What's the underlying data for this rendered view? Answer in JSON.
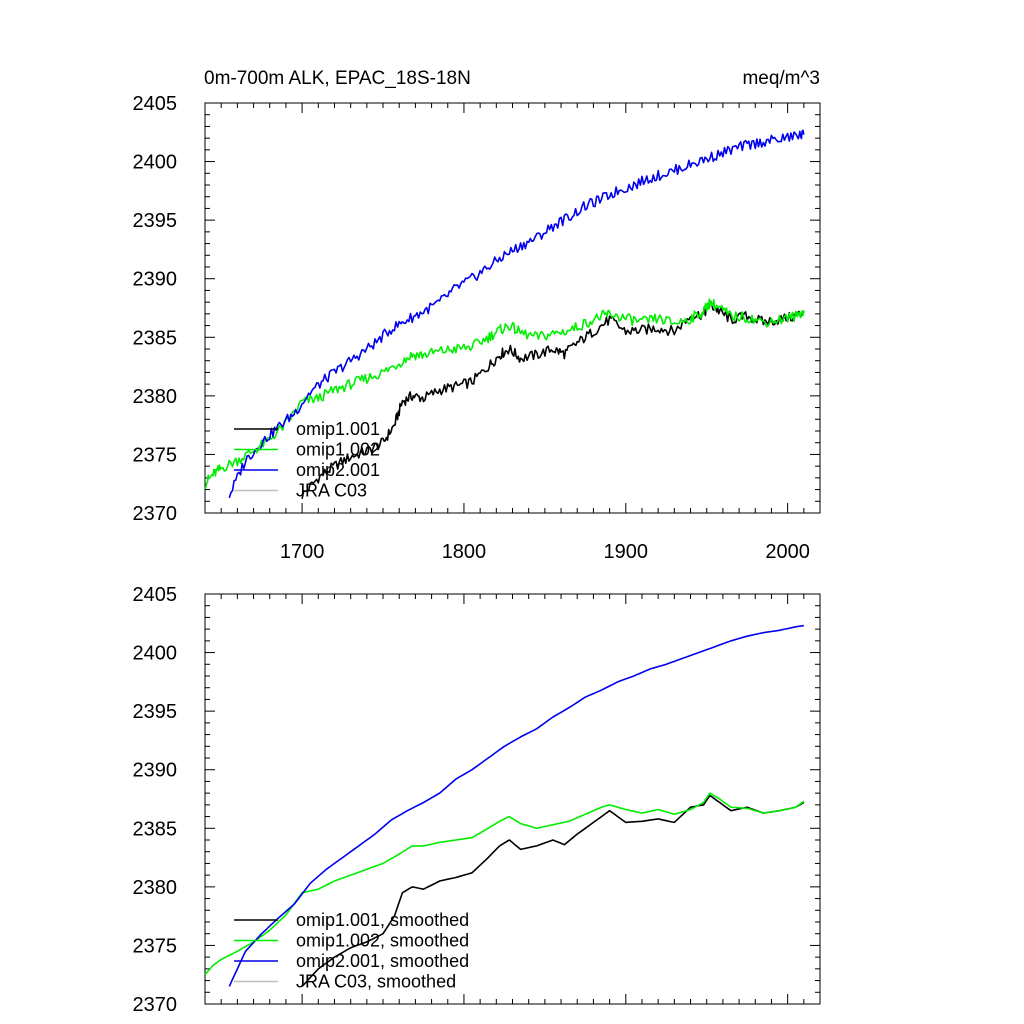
{
  "page": {
    "title_left": "0m-700m ALK, EPAC_18S-18N",
    "title_right": "meq/m^3"
  },
  "chart_data": [
    {
      "type": "line",
      "title": "0m-700m ALK, EPAC_18S-18N",
      "units": "meq/m^3",
      "xlim": [
        1640,
        2020
      ],
      "ylim": [
        2370,
        2405
      ],
      "xticks": [
        1700,
        1800,
        1900,
        2000
      ],
      "xtick_labels": [
        "1700",
        "1800",
        "1900",
        "2000"
      ],
      "yticks": [
        2370,
        2375,
        2380,
        2385,
        2390,
        2395,
        2400,
        2405
      ],
      "ytick_labels": [
        "2370",
        "2375",
        "2380",
        "2385",
        "2390",
        "2395",
        "2400",
        "2405"
      ],
      "legend": [
        "omip1.001",
        "omip1.002",
        "omip2.001",
        "JRA C03"
      ],
      "legend_position": "bottom-left",
      "series": [
        {
          "name": "omip1.001",
          "color": "#000000",
          "x": [
            1700,
            1710,
            1720,
            1730,
            1740,
            1750,
            1757,
            1762,
            1768,
            1775,
            1785,
            1795,
            1805,
            1815,
            1822,
            1828,
            1835,
            1845,
            1855,
            1862,
            1870,
            1880,
            1890,
            1900,
            1910,
            1920,
            1930,
            1940,
            1948,
            1952,
            1958,
            1965,
            1975,
            1985,
            1995,
            2005,
            2010
          ],
          "values": [
            2371.5,
            2373.0,
            2374.0,
            2374.8,
            2375.3,
            2376.0,
            2377.5,
            2379.5,
            2380.0,
            2379.8,
            2380.5,
            2380.8,
            2381.2,
            2382.5,
            2383.5,
            2384.0,
            2383.2,
            2383.5,
            2384.0,
            2383.6,
            2384.5,
            2385.5,
            2386.5,
            2385.5,
            2385.6,
            2385.8,
            2385.5,
            2386.8,
            2387.0,
            2387.8,
            2387.2,
            2386.5,
            2386.8,
            2386.3,
            2386.5,
            2386.8,
            2387.2
          ]
        },
        {
          "name": "omip1.002",
          "color": "#00ee00",
          "x": [
            1640,
            1645,
            1650,
            1660,
            1670,
            1680,
            1690,
            1700,
            1710,
            1720,
            1730,
            1740,
            1750,
            1760,
            1768,
            1775,
            1785,
            1795,
            1805,
            1815,
            1822,
            1828,
            1835,
            1845,
            1855,
            1865,
            1875,
            1885,
            1890,
            1900,
            1910,
            1920,
            1930,
            1940,
            1948,
            1952,
            1958,
            1965,
            1975,
            1985,
            1995,
            2005,
            2010
          ],
          "values": [
            2372.5,
            2373.3,
            2373.8,
            2374.5,
            2375.3,
            2376.3,
            2377.6,
            2379.5,
            2379.8,
            2380.5,
            2381.0,
            2381.5,
            2382.0,
            2382.8,
            2383.5,
            2383.5,
            2383.8,
            2384.0,
            2384.2,
            2385.0,
            2385.6,
            2386.0,
            2385.4,
            2385.0,
            2385.3,
            2385.6,
            2386.2,
            2386.8,
            2387.0,
            2386.6,
            2386.3,
            2386.6,
            2386.2,
            2386.6,
            2387.2,
            2388.0,
            2387.5,
            2386.8,
            2386.7,
            2386.3,
            2386.5,
            2386.8,
            2387.3
          ]
        },
        {
          "name": "omip2.001",
          "color": "#0000ee",
          "x": [
            1655,
            1665,
            1675,
            1685,
            1695,
            1705,
            1715,
            1725,
            1735,
            1745,
            1755,
            1765,
            1775,
            1785,
            1795,
            1805,
            1815,
            1825,
            1835,
            1845,
            1855,
            1865,
            1875,
            1885,
            1895,
            1905,
            1915,
            1925,
            1935,
            1945,
            1955,
            1965,
            1975,
            1985,
            1995,
            2005,
            2010
          ],
          "values": [
            2371.5,
            2374.5,
            2376.0,
            2377.3,
            2378.5,
            2380.3,
            2381.5,
            2382.5,
            2383.5,
            2384.5,
            2385.7,
            2386.5,
            2387.2,
            2388.0,
            2389.2,
            2390.0,
            2391.0,
            2392.0,
            2392.8,
            2393.5,
            2394.5,
            2395.3,
            2396.2,
            2396.8,
            2397.5,
            2398.0,
            2398.6,
            2399.0,
            2399.5,
            2400.0,
            2400.5,
            2401.0,
            2401.4,
            2401.7,
            2401.9,
            2402.2,
            2402.3
          ]
        },
        {
          "name": "JRA C03",
          "color": "#c0c0c0",
          "x": [],
          "values": []
        }
      ]
    },
    {
      "type": "line",
      "title": "",
      "xlim": [
        1640,
        2020
      ],
      "ylim": [
        2370,
        2405
      ],
      "yticks": [
        2370,
        2375,
        2380,
        2385,
        2390,
        2395,
        2400,
        2405
      ],
      "ytick_labels": [
        "2370",
        "2375",
        "2380",
        "2385",
        "2390",
        "2395",
        "2400",
        "2405"
      ],
      "legend": [
        "omip1.001, smoothed",
        "omip1.002, smoothed",
        "omip2.001, smoothed",
        "JRA C03, smoothed"
      ],
      "legend_position": "bottom-left",
      "series": [
        {
          "name": "omip1.001, smoothed",
          "color": "#000000",
          "x": [
            1700,
            1710,
            1720,
            1730,
            1740,
            1750,
            1757,
            1762,
            1768,
            1775,
            1785,
            1795,
            1805,
            1815,
            1822,
            1828,
            1835,
            1845,
            1855,
            1862,
            1870,
            1880,
            1890,
            1900,
            1910,
            1920,
            1930,
            1940,
            1948,
            1952,
            1958,
            1965,
            1975,
            1985,
            1995,
            2005,
            2010
          ],
          "values": [
            2371.5,
            2373.0,
            2374.0,
            2374.8,
            2375.3,
            2376.0,
            2377.5,
            2379.5,
            2380.0,
            2379.8,
            2380.5,
            2380.8,
            2381.2,
            2382.5,
            2383.5,
            2384.0,
            2383.2,
            2383.5,
            2384.0,
            2383.6,
            2384.5,
            2385.5,
            2386.5,
            2385.5,
            2385.6,
            2385.8,
            2385.5,
            2386.8,
            2387.0,
            2387.8,
            2387.2,
            2386.5,
            2386.8,
            2386.3,
            2386.5,
            2386.8,
            2387.2
          ]
        },
        {
          "name": "omip1.002, smoothed",
          "color": "#00ee00",
          "x": [
            1640,
            1645,
            1650,
            1660,
            1670,
            1680,
            1690,
            1700,
            1710,
            1720,
            1730,
            1740,
            1750,
            1760,
            1768,
            1775,
            1785,
            1795,
            1805,
            1815,
            1822,
            1828,
            1835,
            1845,
            1855,
            1865,
            1875,
            1885,
            1890,
            1900,
            1910,
            1920,
            1930,
            1940,
            1948,
            1952,
            1958,
            1965,
            1975,
            1985,
            1995,
            2005,
            2010
          ],
          "values": [
            2372.5,
            2373.3,
            2373.8,
            2374.5,
            2375.3,
            2376.3,
            2377.6,
            2379.5,
            2379.8,
            2380.5,
            2381.0,
            2381.5,
            2382.0,
            2382.8,
            2383.5,
            2383.5,
            2383.8,
            2384.0,
            2384.2,
            2385.0,
            2385.6,
            2386.0,
            2385.4,
            2385.0,
            2385.3,
            2385.6,
            2386.2,
            2386.8,
            2387.0,
            2386.6,
            2386.3,
            2386.6,
            2386.2,
            2386.6,
            2387.2,
            2388.0,
            2387.5,
            2386.8,
            2386.7,
            2386.3,
            2386.5,
            2386.8,
            2387.3
          ]
        },
        {
          "name": "omip2.001, smoothed",
          "color": "#0000ee",
          "x": [
            1655,
            1665,
            1675,
            1685,
            1695,
            1705,
            1715,
            1725,
            1735,
            1745,
            1755,
            1765,
            1775,
            1785,
            1795,
            1805,
            1815,
            1825,
            1835,
            1845,
            1855,
            1865,
            1875,
            1885,
            1895,
            1905,
            1915,
            1925,
            1935,
            1945,
            1955,
            1965,
            1975,
            1985,
            1995,
            2005,
            2010
          ],
          "values": [
            2371.5,
            2374.5,
            2376.0,
            2377.3,
            2378.5,
            2380.3,
            2381.5,
            2382.5,
            2383.5,
            2384.5,
            2385.7,
            2386.5,
            2387.2,
            2388.0,
            2389.2,
            2390.0,
            2391.0,
            2392.0,
            2392.8,
            2393.5,
            2394.5,
            2395.3,
            2396.2,
            2396.8,
            2397.5,
            2398.0,
            2398.6,
            2399.0,
            2399.5,
            2400.0,
            2400.5,
            2401.0,
            2401.4,
            2401.7,
            2401.9,
            2402.2,
            2402.3
          ]
        },
        {
          "name": "JRA C03, smoothed",
          "color": "#c0c0c0",
          "x": [],
          "values": []
        }
      ]
    }
  ]
}
